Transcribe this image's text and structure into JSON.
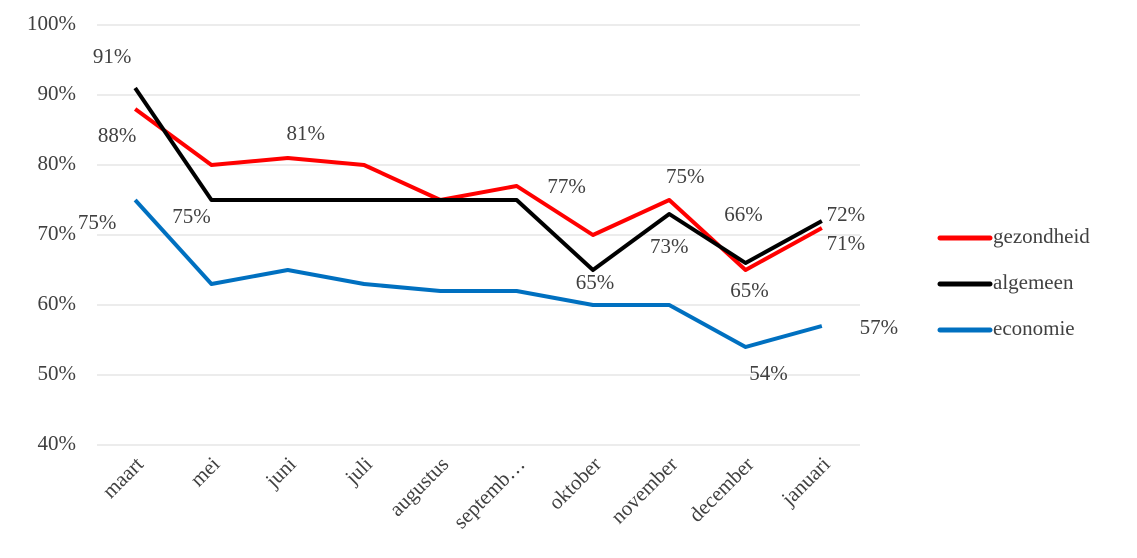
{
  "chart_data": {
    "type": "line",
    "categories": [
      "maart",
      "mei",
      "juni",
      "juli",
      "augustus",
      "septemb…",
      "oktober",
      "november",
      "december",
      "januari"
    ],
    "series": [
      {
        "name": "gezondheid",
        "color": "#ff0000",
        "values": [
          88,
          80,
          81,
          80,
          75,
          77,
          70,
          75,
          65,
          71
        ],
        "value_labels": [
          "88%",
          null,
          "81%",
          null,
          null,
          "77%",
          null,
          "75%",
          "65%",
          "71%"
        ]
      },
      {
        "name": "algemeen",
        "color": "#000000",
        "values": [
          91,
          75,
          75,
          75,
          75,
          75,
          65,
          73,
          66,
          72
        ],
        "value_labels": [
          "91%",
          "75%",
          null,
          null,
          null,
          null,
          "65%",
          "73%",
          "66%",
          "72%"
        ]
      },
      {
        "name": "economie",
        "color": "#0070c0",
        "values": [
          75,
          63,
          65,
          63,
          62,
          62,
          60,
          60,
          54,
          57
        ],
        "value_labels": [
          "75%",
          null,
          null,
          null,
          null,
          null,
          null,
          null,
          "54%",
          "57%"
        ]
      }
    ],
    "ylim": [
      40,
      100
    ],
    "yticks": [
      {
        "value": 40,
        "label": "40%"
      },
      {
        "value": 50,
        "label": "50%"
      },
      {
        "value": 60,
        "label": "60%"
      },
      {
        "value": 70,
        "label": "70%"
      },
      {
        "value": 80,
        "label": "80%"
      },
      {
        "value": 90,
        "label": "90%"
      },
      {
        "value": 100,
        "label": "100%"
      }
    ],
    "grid": true,
    "legend": "right"
  }
}
